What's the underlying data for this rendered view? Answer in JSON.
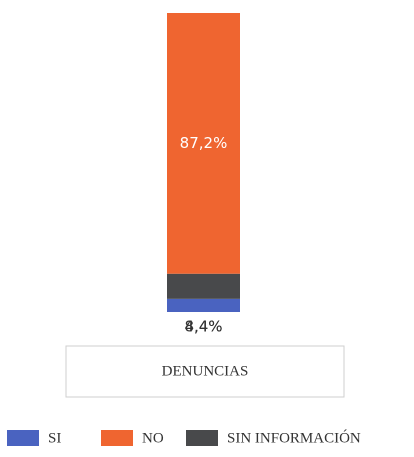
{
  "chart_data": {
    "type": "stacked_bar",
    "categories": [
      "DENUNCIAS"
    ],
    "series": [
      {
        "name": "SI",
        "color": "#4a63c0",
        "values": [
          4.4
        ],
        "value_labels": [
          "4,4%"
        ]
      },
      {
        "name": "NO",
        "color": "#ef6530",
        "values": [
          87.2
        ],
        "value_labels": [
          "87,2%"
        ]
      },
      {
        "name": "SIN INFORMACIÓN",
        "color": "#48494b",
        "values": [
          8.4
        ],
        "value_labels": [
          "8,4%"
        ]
      }
    ]
  }
}
